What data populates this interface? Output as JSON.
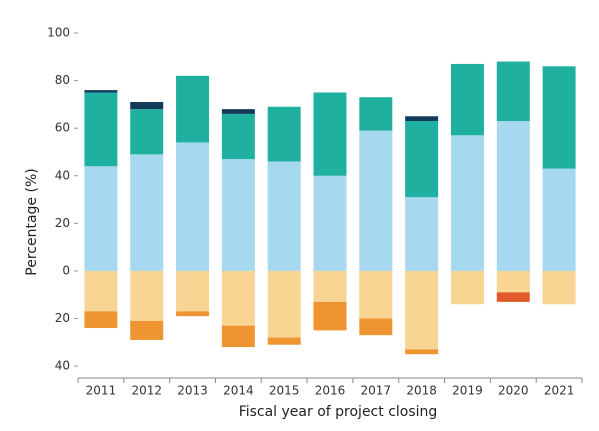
{
  "chart_data": {
    "type": "diverging-stacked-bar",
    "x_label": "Fiscal year of project closing",
    "y_label": "Percentage (%)",
    "categories": [
      "2011",
      "2012",
      "2013",
      "2014",
      "2015",
      "2016",
      "2017",
      "2018",
      "2019",
      "2020",
      "2021"
    ],
    "series": [
      {
        "color": "#a6d8ef",
        "values": [
          44,
          49,
          54,
          47,
          46,
          40,
          59,
          31,
          57,
          63,
          43
        ]
      },
      {
        "color": "#1fb09f",
        "values": [
          31,
          19,
          28,
          19,
          23,
          35,
          14,
          32,
          30,
          25,
          43
        ]
      },
      {
        "color": "#123a5a",
        "values": [
          1,
          3,
          null,
          2,
          null,
          null,
          null,
          2,
          null,
          null,
          null
        ]
      },
      {
        "color": "#f8d592",
        "values": [
          -17,
          -21,
          -17,
          -23,
          -28,
          -13,
          -20,
          -33,
          -14,
          -9,
          -14
        ]
      },
      {
        "color": "#ee9430",
        "values": [
          -7,
          -8,
          -2,
          -9,
          -3,
          -12,
          -7,
          -2,
          null,
          null,
          null
        ]
      },
      {
        "color": "#e05a2b",
        "values": [
          null,
          null,
          null,
          null,
          null,
          null,
          null,
          null,
          null,
          -4,
          null
        ]
      }
    ],
    "ylim": [
      -45,
      100
    ],
    "yticks": [
      {
        "value": -40,
        "label": "40"
      },
      {
        "value": -20,
        "label": "20"
      },
      0,
      20,
      40,
      60,
      80,
      100
    ],
    "grid": false
  }
}
